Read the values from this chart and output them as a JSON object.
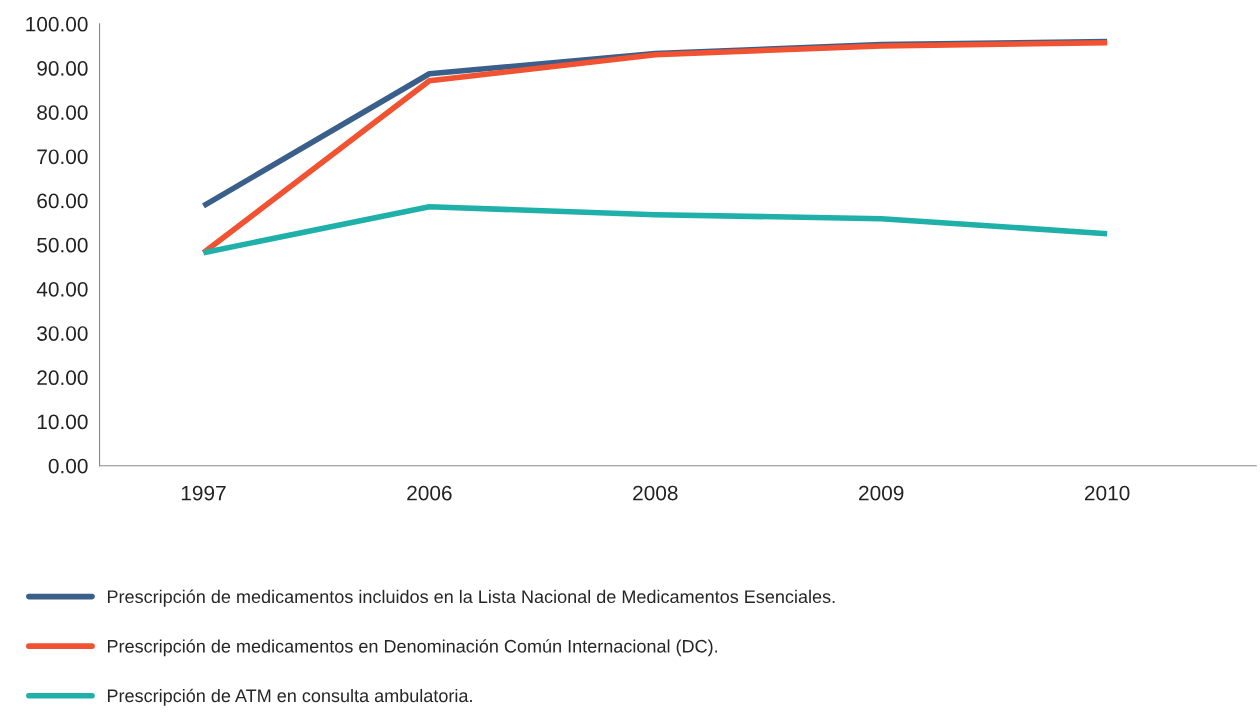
{
  "chart_data": {
    "type": "line",
    "categories": [
      "1997",
      "2006",
      "2008",
      "2009",
      "2010"
    ],
    "series": [
      {
        "name": "Prescripción de medicamentos incluidos en la Lista Nacional de Medicamentos Esenciales.",
        "color": "#3a5f8a",
        "values": [
          58.8,
          88.7,
          93.3,
          95.3,
          96.0
        ]
      },
      {
        "name": "Prescripción de medicamentos en Denominación Común Internacional (DC).",
        "color": "#f05232",
        "values": [
          48.2,
          87.1,
          93.0,
          95.0,
          95.7
        ]
      },
      {
        "name": "Prescripción de ATM en consulta ambulatoria.",
        "color": "#1fb0aa",
        "values": [
          48.2,
          58.6,
          56.8,
          55.9,
          52.5
        ]
      }
    ],
    "ylim": [
      0,
      100
    ],
    "yticks": [
      {
        "value": 0,
        "label": "0.00"
      },
      {
        "value": 10,
        "label": "10.00"
      },
      {
        "value": 20,
        "label": "20.00"
      },
      {
        "value": 30,
        "label": "30.00"
      },
      {
        "value": 40,
        "label": "40.00"
      },
      {
        "value": 50,
        "label": "50.00"
      },
      {
        "value": 60,
        "label": "60.00"
      },
      {
        "value": 70,
        "label": "70.00"
      },
      {
        "value": 80,
        "label": "80.00"
      },
      {
        "value": 90,
        "label": "90.00"
      },
      {
        "value": 100,
        "label": "100.00"
      }
    ],
    "grid": false,
    "legend": "bottom left",
    "marker": "none",
    "line_style": "solid"
  }
}
